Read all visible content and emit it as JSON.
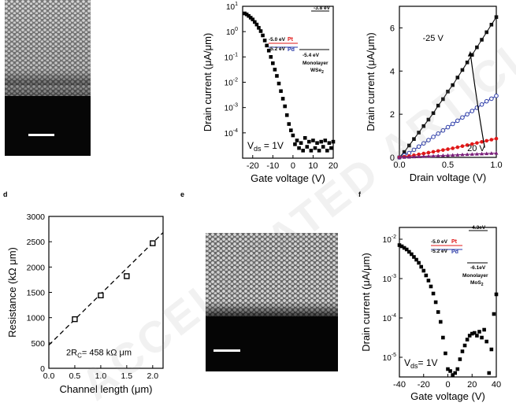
{
  "panel_labels": {
    "d": "d",
    "e": "e",
    "f": "f"
  },
  "watermark": "ACCELERATED ARTICLE PREVIEW",
  "chart_data": [
    {
      "id": "b",
      "type": "scatter",
      "title": "",
      "xlabel": "Gate voltage (V)",
      "ylabel": "Drain current (μA/μm)",
      "xlim": [
        -25,
        20
      ],
      "ylim_log10": [
        -5,
        1
      ],
      "xticks": [
        "-20",
        "-10",
        "0",
        "10",
        "20"
      ],
      "yticks": [
        "10",
        "1",
        "0",
        "-1",
        "-2",
        "-3",
        "-4"
      ],
      "ytick_labels": [
        "10",
        "10",
        "10",
        "10",
        "10",
        "10",
        "10"
      ],
      "ytick_exp": [
        "1",
        "0",
        "-1",
        "-2",
        "-3",
        "-4"
      ],
      "annotation": "V_ds = 1V",
      "inset": {
        "top": "-3.8 eV",
        "pt": "-5.0 eV Pt",
        "pd": "-5.2 eV Pd",
        "bottom": "-5.4 eV",
        "material1": "Monolayer",
        "material2": "WSe2"
      },
      "series": [
        {
          "x": [
            -24,
            -23,
            -22,
            -21,
            -20,
            -19,
            -18,
            -17,
            -16,
            -15,
            -14,
            -13,
            -12,
            -11,
            -10,
            -9,
            -8,
            -7,
            -6,
            -5,
            -4,
            -3,
            -2,
            -1,
            0,
            1,
            2,
            3,
            4,
            5,
            6,
            7,
            8,
            9,
            10,
            11,
            12,
            13,
            14,
            15,
            16,
            17,
            18,
            19,
            20
          ],
          "log10_y": [
            0.72,
            0.68,
            0.62,
            0.55,
            0.48,
            0.38,
            0.28,
            0.15,
            0.02,
            -0.15,
            -0.35,
            -0.55,
            -0.75,
            -1.0,
            -1.25,
            -1.5,
            -1.75,
            -2.05,
            -2.35,
            -2.65,
            -2.95,
            -3.3,
            -3.65,
            -3.9,
            -4.1,
            -4.45,
            -4.3,
            -4.6,
            -4.4,
            -4.7,
            -4.2,
            -4.55,
            -4.35,
            -4.7,
            -4.3,
            -4.6,
            -4.4,
            -4.7,
            -4.35,
            -4.55,
            -4.3,
            -4.7,
            -4.4,
            -4.6,
            -4.35
          ]
        }
      ]
    },
    {
      "id": "c",
      "type": "line",
      "title": "",
      "xlabel": "Drain voltage (V)",
      "ylabel": "Drain current (μA/μm)",
      "xlim": [
        0,
        1.0
      ],
      "ylim": [
        0,
        7
      ],
      "xticks": [
        "0.0",
        "0.5",
        "1.0"
      ],
      "yticks": [
        "0",
        "2",
        "4",
        "6"
      ],
      "annotations": {
        "top": "-25 V",
        "bottom": "20 V"
      },
      "series": [
        {
          "color": "#111111",
          "marker": "square",
          "x": [
            0,
            0.05,
            0.1,
            0.15,
            0.2,
            0.25,
            0.3,
            0.35,
            0.4,
            0.45,
            0.5,
            0.55,
            0.6,
            0.65,
            0.7,
            0.75,
            0.8,
            0.85,
            0.9,
            0.95,
            1.0
          ],
          "values": [
            0,
            0.25,
            0.55,
            0.85,
            1.15,
            1.45,
            1.75,
            2.05,
            2.4,
            2.7,
            3.05,
            3.35,
            3.7,
            4.05,
            4.4,
            4.75,
            5.1,
            5.45,
            5.8,
            6.15,
            6.5
          ]
        },
        {
          "color": "#2a3aa8",
          "marker": "circle-open",
          "x": [
            0,
            0.05,
            0.1,
            0.15,
            0.2,
            0.25,
            0.3,
            0.35,
            0.4,
            0.45,
            0.5,
            0.55,
            0.6,
            0.65,
            0.7,
            0.75,
            0.8,
            0.85,
            0.9,
            0.95,
            1.0
          ],
          "values": [
            0,
            0.1,
            0.2,
            0.35,
            0.5,
            0.65,
            0.8,
            0.95,
            1.1,
            1.25,
            1.4,
            1.55,
            1.7,
            1.85,
            2.0,
            2.15,
            2.3,
            2.45,
            2.6,
            2.72,
            2.85
          ]
        },
        {
          "color": "#e01818",
          "marker": "circle",
          "x": [
            0,
            0.05,
            0.1,
            0.15,
            0.2,
            0.25,
            0.3,
            0.35,
            0.4,
            0.45,
            0.5,
            0.55,
            0.6,
            0.65,
            0.7,
            0.75,
            0.8,
            0.85,
            0.9,
            0.95,
            1.0
          ],
          "values": [
            0,
            0.03,
            0.06,
            0.1,
            0.14,
            0.18,
            0.22,
            0.26,
            0.3,
            0.34,
            0.38,
            0.42,
            0.47,
            0.52,
            0.57,
            0.62,
            0.67,
            0.72,
            0.77,
            0.82,
            0.87
          ]
        },
        {
          "color": "#7a1f7a",
          "marker": "triangle",
          "x": [
            0,
            0.05,
            0.1,
            0.15,
            0.2,
            0.25,
            0.3,
            0.35,
            0.4,
            0.45,
            0.5,
            0.55,
            0.6,
            0.65,
            0.7,
            0.75,
            0.8,
            0.85,
            0.9,
            0.95,
            1.0
          ],
          "values": [
            0,
            0.01,
            0.02,
            0.03,
            0.04,
            0.05,
            0.06,
            0.07,
            0.08,
            0.09,
            0.1,
            0.11,
            0.12,
            0.13,
            0.14,
            0.15,
            0.16,
            0.17,
            0.18,
            0.19,
            0.2
          ]
        }
      ]
    },
    {
      "id": "d",
      "type": "scatter",
      "title": "",
      "xlabel": "Channel length (μm)",
      "ylabel": "Resistance (kΩ μm)",
      "xlim": [
        0.0,
        2.2
      ],
      "ylim": [
        0,
        3000
      ],
      "xticks": [
        "0.0",
        "0.5",
        "1.0",
        "1.5",
        "2.0"
      ],
      "yticks": [
        "0",
        "500",
        "1000",
        "1500",
        "2000",
        "2500",
        "3000"
      ],
      "annotation": "2R",
      "annotation_sub": "C",
      "annotation_rest": "= 458 kΩ μm",
      "fit": {
        "intercept": 458,
        "slope": 1010,
        "x_range": [
          0.0,
          2.2
        ]
      },
      "series": [
        {
          "x": [
            0.5,
            1.0,
            1.5,
            2.0
          ],
          "values": [
            970,
            1440,
            1820,
            2470
          ]
        }
      ]
    },
    {
      "id": "f",
      "type": "scatter",
      "title": "",
      "xlabel": "Gate voltage (V)",
      "ylabel": "Drain current (μA/μm)",
      "xlim": [
        -40,
        40
      ],
      "ylim_log10": [
        -5.5,
        -1.7
      ],
      "xticks": [
        "-40",
        "-20",
        "0",
        "20",
        "40"
      ],
      "ytick_exp": [
        "-2",
        "-3",
        "-4",
        "-5"
      ],
      "annotation": "V_ds = 1V",
      "inset": {
        "top": "-4.3eV",
        "pt": "-5.0 eV Pt",
        "pd": "-5.2 eV Pd",
        "bottom": "-6.1eV",
        "material1": "Monolayer",
        "material2": "MoS2"
      },
      "series": [
        {
          "x": [
            -40,
            -38,
            -36,
            -34,
            -32,
            -30,
            -28,
            -26,
            -24,
            -22,
            -20,
            -18,
            -16,
            -14,
            -12,
            -10,
            -8,
            -6,
            -4,
            -2,
            0,
            2,
            4,
            6,
            8,
            10,
            12,
            14,
            16,
            18,
            20,
            22,
            24,
            26,
            28,
            30,
            32,
            34,
            36,
            38,
            40
          ],
          "log10_y": [
            -2.15,
            -2.18,
            -2.22,
            -2.26,
            -2.32,
            -2.38,
            -2.45,
            -2.52,
            -2.6,
            -2.7,
            -2.8,
            -2.92,
            -3.05,
            -3.2,
            -3.38,
            -3.6,
            -3.85,
            -4.1,
            -4.5,
            -4.9,
            -5.3,
            -5.35,
            -5.45,
            -5.4,
            -5.3,
            -5.05,
            -4.85,
            -4.7,
            -4.55,
            -4.45,
            -4.4,
            -4.38,
            -4.45,
            -4.35,
            -4.5,
            -4.3,
            -4.6,
            -5.4,
            -4.8,
            -3.9,
            -3.4
          ]
        }
      ]
    }
  ]
}
